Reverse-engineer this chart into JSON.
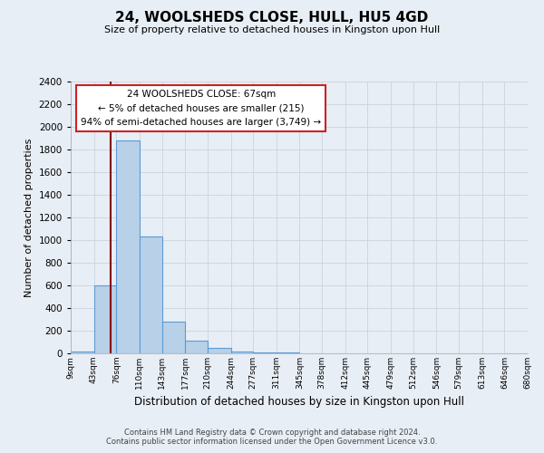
{
  "title": "24, WOOLSHEDS CLOSE, HULL, HU5 4GD",
  "subtitle": "Size of property relative to detached houses in Kingston upon Hull",
  "bar_values": [
    20,
    600,
    1880,
    1030,
    280,
    115,
    50,
    20,
    10,
    5,
    2,
    1,
    0,
    0,
    1,
    0,
    0,
    0,
    0,
    0
  ],
  "bin_edges": [
    9,
    43,
    76,
    110,
    143,
    177,
    210,
    244,
    277,
    311,
    345,
    378,
    412,
    445,
    479,
    512,
    546,
    579,
    613,
    646,
    680
  ],
  "tick_labels": [
    "9sqm",
    "43sqm",
    "76sqm",
    "110sqm",
    "143sqm",
    "177sqm",
    "210sqm",
    "244sqm",
    "277sqm",
    "311sqm",
    "345sqm",
    "378sqm",
    "412sqm",
    "445sqm",
    "479sqm",
    "512sqm",
    "546sqm",
    "579sqm",
    "613sqm",
    "646sqm",
    "680sqm"
  ],
  "bar_color": "#b8d0e8",
  "bar_edge_color": "#5b9bd5",
  "ylabel": "Number of detached properties",
  "xlabel": "Distribution of detached houses by size in Kingston upon Hull",
  "ylim": [
    0,
    2400
  ],
  "yticks": [
    0,
    200,
    400,
    600,
    800,
    1000,
    1200,
    1400,
    1600,
    1800,
    2000,
    2200,
    2400
  ],
  "vline_x": 67,
  "vline_color": "#8b0000",
  "annotation_title": "24 WOOLSHEDS CLOSE: 67sqm",
  "annotation_line1": "← 5% of detached houses are smaller (215)",
  "annotation_line2": "94% of semi-detached houses are larger (3,749) →",
  "background_color": "#e8eef5",
  "plot_bg_color": "#e8eef5",
  "footer_line1": "Contains HM Land Registry data © Crown copyright and database right 2024.",
  "footer_line2": "Contains public sector information licensed under the Open Government Licence v3.0."
}
